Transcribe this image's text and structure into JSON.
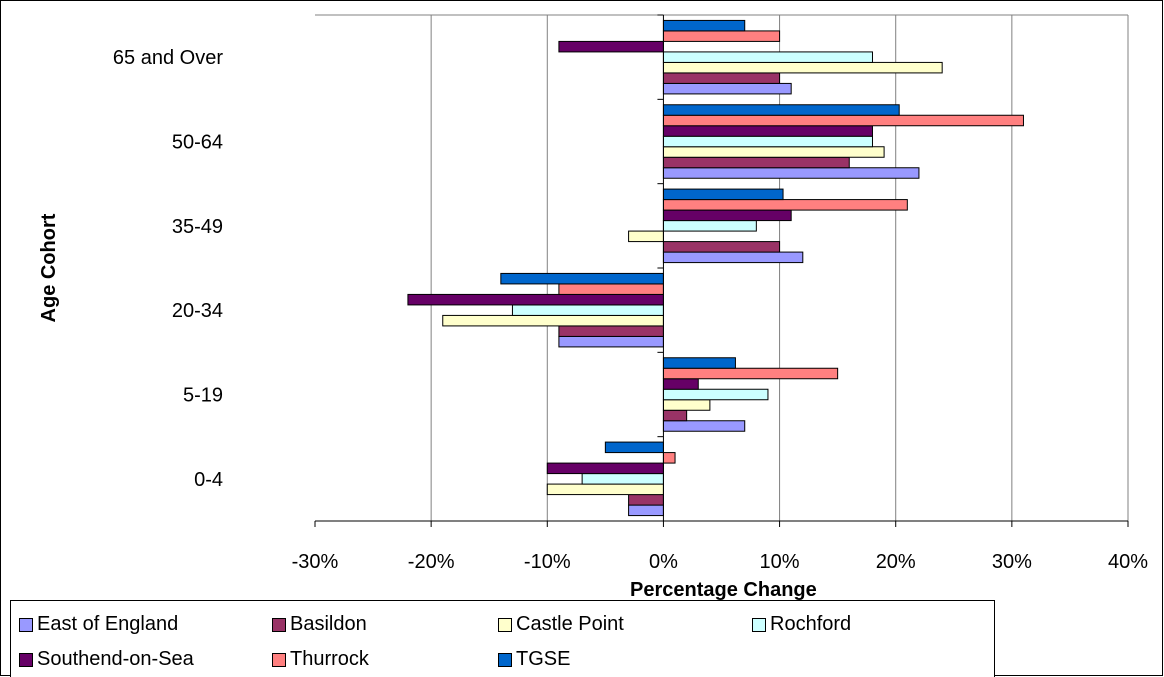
{
  "chart_data": {
    "type": "bar",
    "orientation": "horizontal",
    "xlabel": "Percentage Change",
    "ylabel": "Age Cohort",
    "xlim": [
      -30,
      40
    ],
    "x_ticks": [
      "-30%",
      "-20%",
      "-10%",
      "0%",
      "10%",
      "20%",
      "30%",
      "40%"
    ],
    "grid": true,
    "legend_position": "bottom",
    "categories": [
      "0-4",
      "5-19",
      "20-34",
      "35-49",
      "50-64",
      "65 and Over"
    ],
    "series": [
      {
        "name": "East of England",
        "color": "#9999FF",
        "values": [
          -3,
          7,
          -9,
          12,
          22,
          11
        ]
      },
      {
        "name": "Basildon",
        "color": "#993366",
        "values": [
          -3,
          2,
          -9,
          10,
          16,
          10
        ]
      },
      {
        "name": "Castle Point",
        "color": "#FFFFCC",
        "values": [
          -10,
          4,
          -19,
          -3,
          19,
          24
        ]
      },
      {
        "name": "Rochford",
        "color": "#CCFFFF",
        "values": [
          -7,
          9,
          -13,
          8,
          18,
          18
        ]
      },
      {
        "name": "Southend-on-Sea",
        "color": "#660066",
        "values": [
          -10,
          3,
          -22,
          11,
          18,
          -9
        ]
      },
      {
        "name": "Thurrock",
        "color": "#FF8080",
        "values": [
          1,
          15,
          -9,
          21,
          31,
          10
        ]
      },
      {
        "name": "TGSE",
        "color": "#0066CC",
        "values": [
          -5,
          6.2,
          -14,
          10.3,
          20.3,
          7
        ]
      }
    ]
  }
}
